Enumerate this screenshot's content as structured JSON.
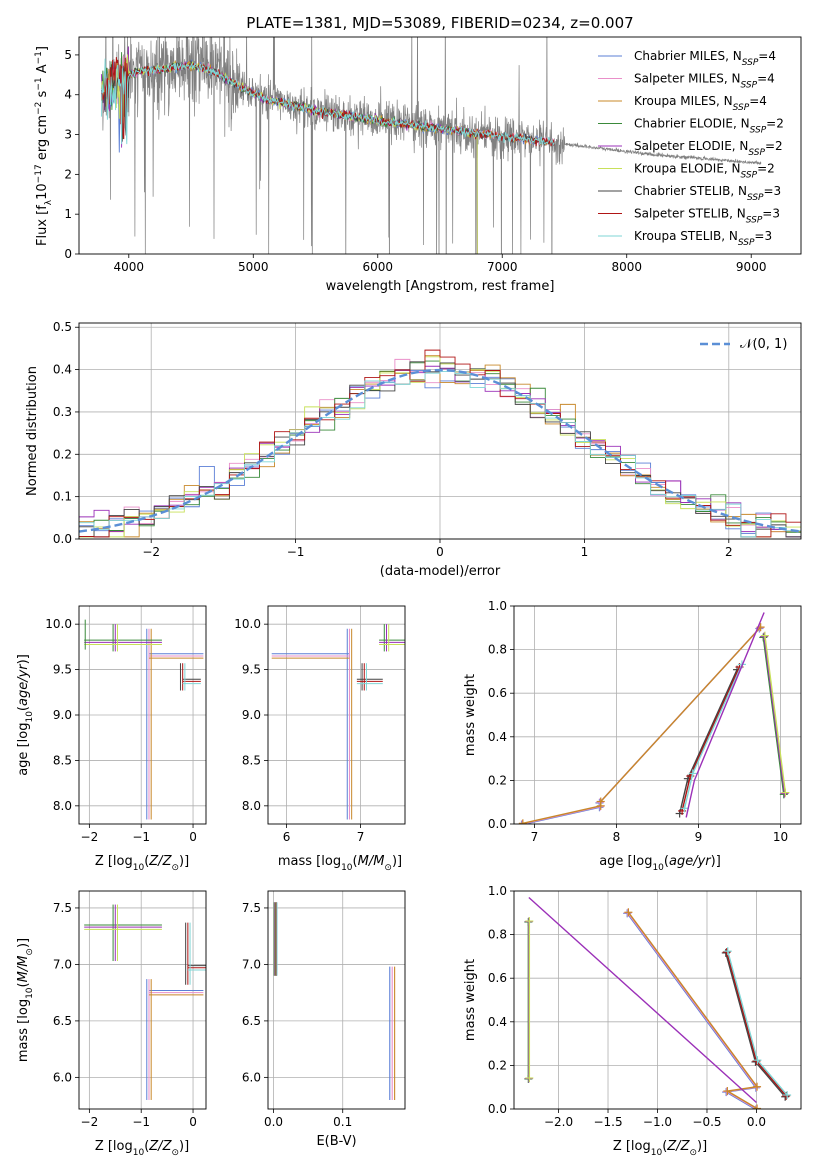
{
  "figure": {
    "title": "PLATE=1381, MJD=53089, FIBERID=0234, z=0.007"
  },
  "colors": {
    "Chabrier MILES": "#5b7fd6",
    "Salpeter MILES": "#e98fc9",
    "Kroupa MILES": "#c8882a",
    "Chabrier ELODIE": "#3a8a3a",
    "Salpeter ELODIE": "#9b30b8",
    "Kroupa ELODIE": "#c8e05a",
    "Chabrier STELIB": "#444444",
    "Salpeter STELIB": "#b01515",
    "Kroupa STELIB": "#7fd6d6",
    "data": "#808080",
    "gaussian": "#5b8fd6"
  },
  "chart_data": [
    {
      "id": "spectrum",
      "type": "line",
      "xlabel": "wavelength [Angstrom, rest frame]",
      "ylabel": "Flux [f_λ 10^-17 erg cm^-2 s^-1 A^-1]",
      "xlim": [
        3600,
        9400
      ],
      "ylim": [
        0,
        5.45
      ],
      "xticks": [
        4000,
        5000,
        6000,
        7000,
        8000,
        9000
      ],
      "yticks": [
        0,
        1,
        2,
        3,
        4,
        5
      ],
      "grid": false,
      "legend_position": "top-right",
      "data_series": {
        "name": "data",
        "x_range": [
          3780,
          9080
        ]
      },
      "legend": [
        {
          "name": "Chabrier MILES",
          "nssp": "4"
        },
        {
          "name": "Salpeter MILES",
          "nssp": "4"
        },
        {
          "name": "Kroupa MILES",
          "nssp": "4"
        },
        {
          "name": "Chabrier ELODIE",
          "nssp": "2"
        },
        {
          "name": "Salpeter ELODIE",
          "nssp": "2"
        },
        {
          "name": "Kroupa ELODIE",
          "nssp": "2"
        },
        {
          "name": "Chabrier STELIB",
          "nssp": "3"
        },
        {
          "name": "Salpeter STELIB",
          "nssp": "3"
        },
        {
          "name": "Kroupa STELIB",
          "nssp": "3"
        }
      ],
      "continuum": {
        "x": [
          3780,
          3900,
          4000,
          4100,
          4300,
          4500,
          4700,
          4900,
          5100,
          5500,
          6000,
          6500,
          7000,
          7400,
          7800,
          8200,
          8600,
          9000,
          9080
        ],
        "y": [
          4.1,
          4.3,
          4.5,
          4.6,
          4.65,
          4.75,
          4.55,
          4.2,
          3.9,
          3.6,
          3.35,
          3.15,
          2.95,
          2.8,
          2.65,
          2.5,
          2.4,
          2.3,
          2.28
        ]
      },
      "model_end": {
        "MILES": 7420,
        "ELODIE": 6800,
        "STELIB": 7420
      }
    },
    {
      "id": "residuals",
      "type": "line",
      "xlabel": "(data-model)/error",
      "ylabel": "Normed distribution",
      "xlim": [
        -2.5,
        2.5
      ],
      "ylim": [
        0,
        0.51
      ],
      "xticks": [
        -2,
        -1,
        0,
        1,
        2
      ],
      "yticks": [
        0,
        0.1,
        0.2,
        0.3,
        0.4,
        0.5
      ],
      "grid": true,
      "legend_position": "top-right",
      "legend_label": "𝒩(0, 1)"
    },
    {
      "id": "age_vs_Z",
      "type": "scatter",
      "xlabel": "Z [log10(Z/Z⊙)]",
      "ylabel": "age [log10(age/yr)]",
      "xlim": [
        -2.2,
        0.25
      ],
      "ylim": [
        7.8,
        10.2
      ],
      "xticks": [
        -2,
        -1,
        0
      ],
      "yticks": [
        8.0,
        8.5,
        9.0,
        9.5,
        10.0
      ],
      "grid": true
    },
    {
      "id": "age_vs_mass",
      "type": "scatter",
      "xlabel": "mass [log10(M/M⊙)]",
      "xlim": [
        5.75,
        7.6
      ],
      "ylim": [
        7.8,
        10.2
      ],
      "xticks": [
        6,
        7
      ],
      "yticks": [
        8.0,
        8.5,
        9.0,
        9.5,
        10.0
      ],
      "grid": true
    },
    {
      "id": "weight_vs_age",
      "type": "line",
      "xlabel": "age [log10(age/yr)]",
      "ylabel": "mass weight",
      "xlim": [
        6.75,
        10.25
      ],
      "ylim": [
        0,
        1.0
      ],
      "xticks": [
        7,
        8,
        9,
        10
      ],
      "yticks": [
        0.0,
        0.2,
        0.4,
        0.6,
        0.8,
        1.0
      ],
      "grid": true
    },
    {
      "id": "mass_vs_Z",
      "type": "scatter",
      "xlabel": "Z [log10(Z/Z⊙)]",
      "ylabel": "mass [log10(M/M⊙)]",
      "xlim": [
        -2.2,
        0.25
      ],
      "ylim": [
        5.72,
        7.65
      ],
      "xticks": [
        -2,
        -1,
        0
      ],
      "yticks": [
        6.0,
        6.5,
        7.0,
        7.5
      ],
      "grid": true
    },
    {
      "id": "mass_vs_ebv",
      "type": "scatter",
      "xlabel": "E(B-V)",
      "xlim": [
        -0.008,
        0.19
      ],
      "ylim": [
        5.72,
        7.65
      ],
      "xticks": [
        0.0,
        0.1
      ],
      "yticks": [
        6.0,
        6.5,
        7.0,
        7.5
      ],
      "grid": true
    },
    {
      "id": "weight_vs_Z",
      "type": "line",
      "xlabel": "Z [log10(Z/Z⊙)]",
      "ylabel": "mass weight",
      "xlim": [
        -2.45,
        0.45
      ],
      "ylim": [
        0,
        1.0
      ],
      "xticks": [
        -2.0,
        -1.5,
        -1.0,
        -0.5,
        0.0
      ],
      "yticks": [
        0.0,
        0.2,
        0.4,
        0.6,
        0.8,
        1.0
      ],
      "grid": true
    }
  ],
  "ssp": {
    "MILES": {
      "models": [
        "Chabrier MILES",
        "Salpeter MILES",
        "Kroupa MILES"
      ],
      "age": [
        6.85,
        7.8,
        7.8,
        9.75
      ],
      "Z": [
        0.0,
        -0.3,
        0.0,
        -1.3
      ],
      "weight": [
        0.0,
        0.08,
        0.1,
        0.9
      ],
      "mass": [
        5.9,
        6.78,
        6.82,
        6.88
      ],
      "ebv": 0.17
    },
    "ELODIE": {
      "models": [
        "Chabrier ELODIE",
        "Salpeter ELODIE",
        "Kroupa ELODIE"
      ],
      "age": [
        10.05,
        9.8
      ],
      "Z": [
        -2.3,
        -2.3
      ],
      "weight": [
        0.14,
        0.86
      ],
      "mass": [
        7.05,
        7.35
      ],
      "ebv": 0.0
    },
    "STELIB": {
      "models": [
        "Chabrier STELIB",
        "Salpeter STELIB",
        "Kroupa STELIB"
      ],
      "age": [
        8.8,
        8.9,
        9.5
      ],
      "Z": [
        0.3,
        0.0,
        -0.3
      ],
      "weight": [
        0.06,
        0.22,
        0.72
      ],
      "mass": [
        6.97,
        7.1,
        7.37
      ],
      "ebv": 0.0
    }
  }
}
